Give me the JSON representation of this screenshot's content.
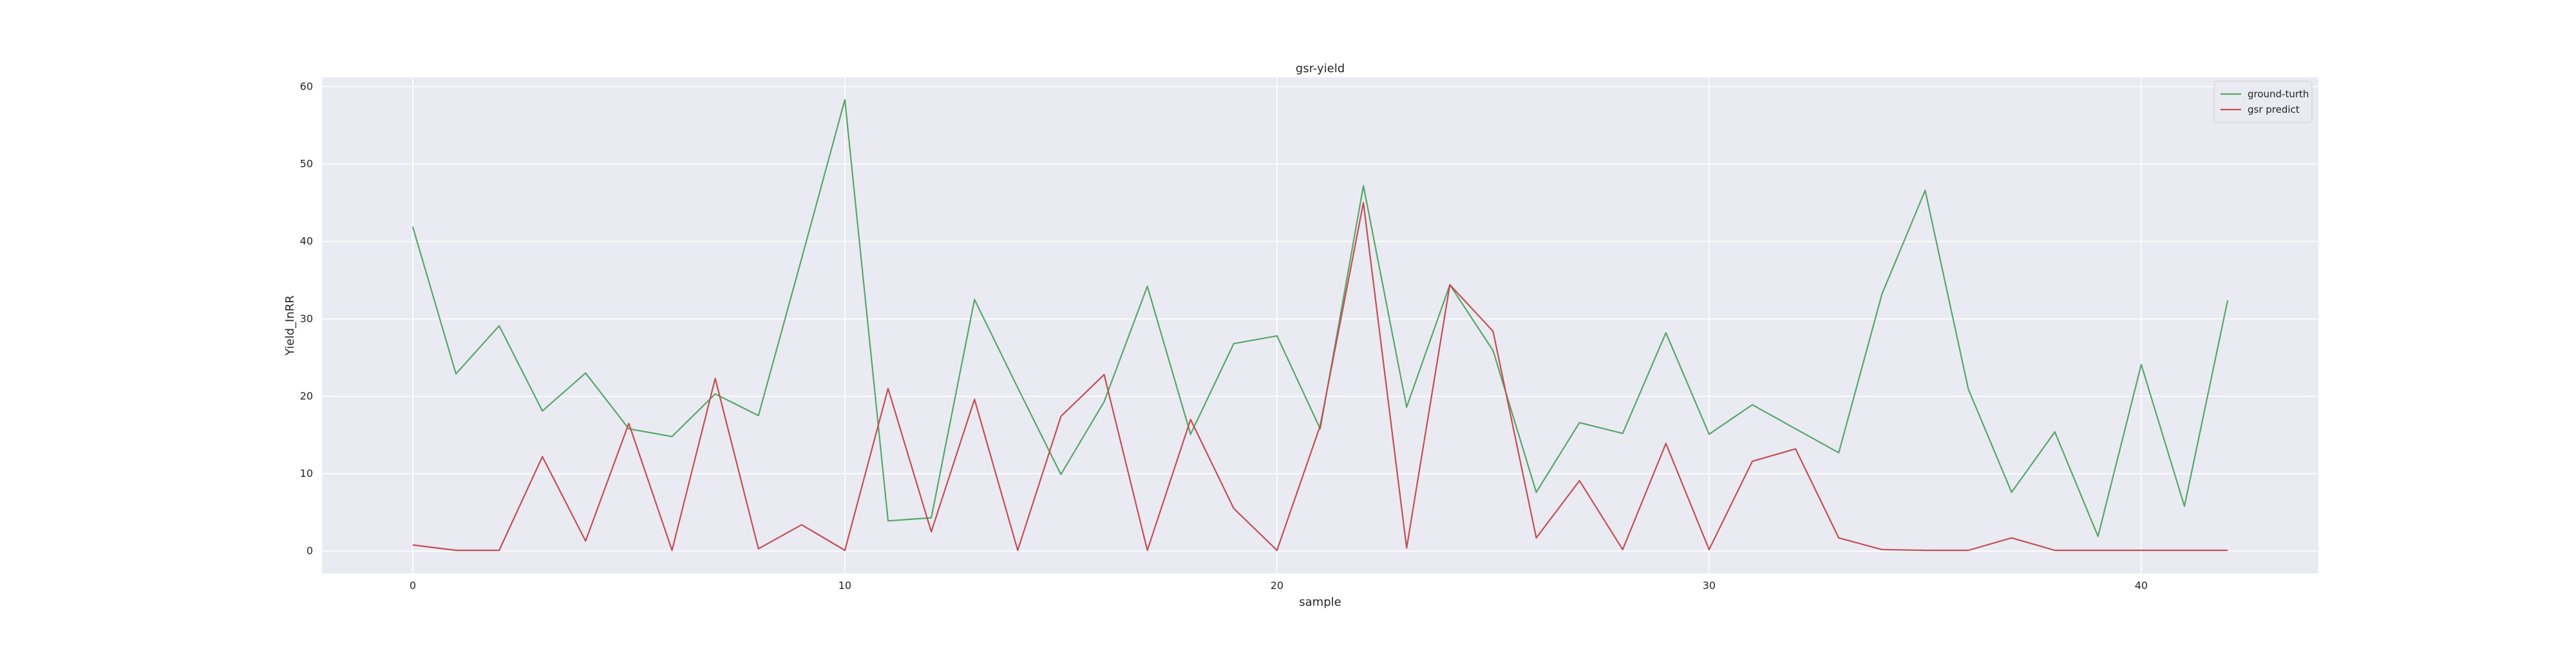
{
  "chart_data": {
    "type": "line",
    "title": "gsr-yield",
    "xlabel": "sample",
    "ylabel": "Yield_InRR",
    "xlim": [
      -2.1,
      44.1
    ],
    "ylim": [
      -2.9,
      61.2
    ],
    "x_ticks": [
      0,
      10,
      20,
      30,
      40
    ],
    "y_ticks": [
      0,
      10,
      20,
      30,
      40,
      50,
      60
    ],
    "grid": true,
    "legend_position": "top-right",
    "series": [
      {
        "name": "ground-turth",
        "color": "#55a868",
        "x": [
          0,
          1,
          2,
          3,
          4,
          5,
          6,
          7,
          8,
          9,
          10,
          11,
          12,
          13,
          14,
          15,
          16,
          17,
          18,
          19,
          20,
          21,
          22,
          23,
          24,
          25,
          26,
          27,
          28,
          29,
          30,
          31,
          32,
          33,
          34,
          35,
          36,
          37,
          38,
          39,
          40,
          41,
          42
        ],
        "values": [
          41.9,
          22.9,
          29.1,
          18.1,
          23.0,
          15.8,
          14.8,
          20.3,
          17.5,
          37.8,
          58.3,
          3.9,
          4.3,
          32.5,
          21.1,
          9.9,
          19.3,
          34.2,
          15.1,
          26.8,
          27.8,
          15.8,
          47.2,
          18.6,
          34.4,
          25.9,
          7.6,
          16.6,
          15.2,
          28.2,
          15.1,
          18.9,
          15.8,
          12.7,
          33.2,
          46.6,
          20.9,
          7.6,
          15.4,
          1.9,
          24.1,
          5.8,
          32.4
        ]
      },
      {
        "name": "gsr predict",
        "color": "#c44e52",
        "x": [
          0,
          1,
          2,
          3,
          4,
          5,
          6,
          7,
          8,
          9,
          10,
          11,
          12,
          13,
          14,
          15,
          16,
          17,
          18,
          19,
          20,
          21,
          22,
          23,
          24,
          25,
          26,
          27,
          28,
          29,
          30,
          31,
          32,
          33,
          34,
          35,
          36,
          37,
          38,
          39,
          40,
          41,
          42
        ],
        "values": [
          0.8,
          0.1,
          0.1,
          12.2,
          1.3,
          16.5,
          0.1,
          22.3,
          0.3,
          3.4,
          0.1,
          21.0,
          2.5,
          19.6,
          0.1,
          17.4,
          22.8,
          0.1,
          17.0,
          5.5,
          0.1,
          16.2,
          45.0,
          0.4,
          34.4,
          28.4,
          1.7,
          9.1,
          0.2,
          13.9,
          0.2,
          11.6,
          13.2,
          1.7,
          0.2,
          0.1,
          0.1,
          1.7,
          0.1,
          0.1,
          0.1,
          0.1,
          0.1
        ]
      }
    ]
  }
}
